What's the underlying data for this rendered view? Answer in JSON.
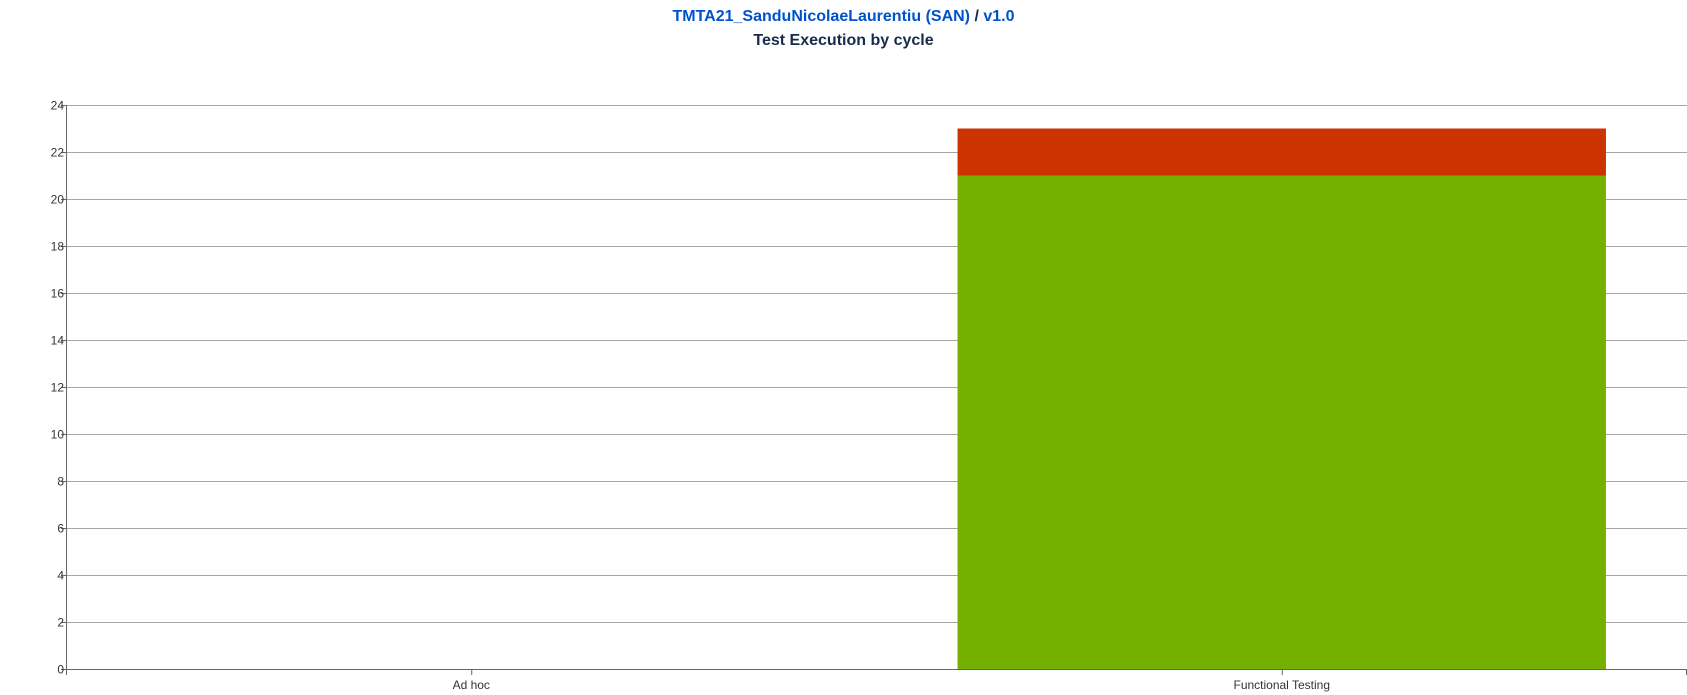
{
  "header": {
    "project_link": "TMTA21_SanduNicolaeLaurentiu (SAN)",
    "separator": "/",
    "version_link": "v1.0",
    "subtitle": "Test Execution by cycle"
  },
  "chart_data": {
    "type": "bar",
    "stacked": true,
    "title": "Test Execution by cycle",
    "xlabel": "",
    "ylabel": "",
    "categories": [
      "Ad hoc",
      "Functional Testing"
    ],
    "series": [
      {
        "color": "#75b000",
        "values": [
          0,
          21
        ]
      },
      {
        "color": "#cc3300",
        "values": [
          0,
          2
        ]
      }
    ],
    "ylim": [
      0,
      24
    ],
    "yticks": [
      0,
      2,
      4,
      6,
      8,
      10,
      12,
      14,
      16,
      18,
      20,
      22,
      24
    ],
    "grid": true
  }
}
